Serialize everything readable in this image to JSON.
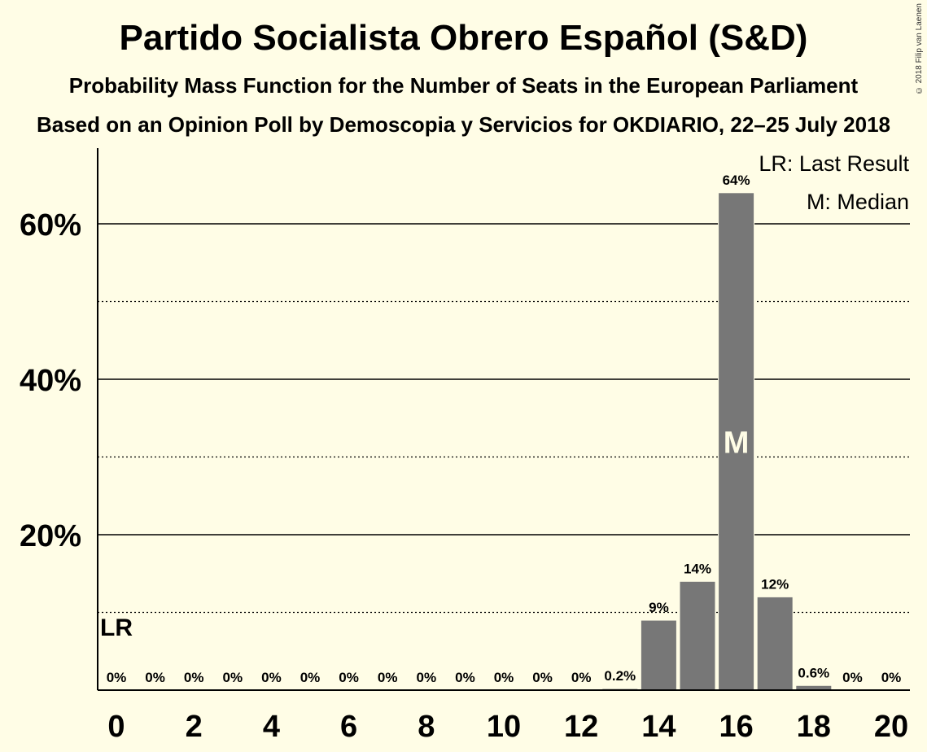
{
  "chart_data": {
    "type": "bar",
    "title": "Partido Socialista Obrero Español (S&D)",
    "subtitle": "Probability Mass Function for the Number of Seats in the European Parliament",
    "subtitle2": "Based on an Opinion Poll by Demoscopia y Servicios for OKDIARIO, 22–25 July 2018",
    "xlabel": "",
    "ylabel": "",
    "x": [
      0,
      1,
      2,
      3,
      4,
      5,
      6,
      7,
      8,
      9,
      10,
      11,
      12,
      13,
      14,
      15,
      16,
      17,
      18,
      19,
      20
    ],
    "values": [
      0,
      0,
      0,
      0,
      0,
      0,
      0,
      0,
      0,
      0,
      0,
      0,
      0,
      0.2,
      9,
      14,
      64,
      12,
      0.6,
      0,
      0
    ],
    "data_labels": [
      "0%",
      "0%",
      "0%",
      "0%",
      "0%",
      "0%",
      "0%",
      "0%",
      "0%",
      "0%",
      "0%",
      "0%",
      "0%",
      "0.2%",
      "9%",
      "14%",
      "64%",
      "12%",
      "0.6%",
      "0%",
      "0%"
    ],
    "x_tick_labels": [
      "0",
      "2",
      "4",
      "6",
      "8",
      "10",
      "12",
      "14",
      "16",
      "18",
      "20"
    ],
    "x_ticks": [
      0,
      2,
      4,
      6,
      8,
      10,
      12,
      14,
      16,
      18,
      20
    ],
    "y_ticks": [
      20,
      40,
      60
    ],
    "y_tick_labels": [
      "20%",
      "40%",
      "60%"
    ],
    "y_minor_gridlines": [
      10,
      30,
      50
    ],
    "ylim": [
      0,
      70
    ],
    "bar_color": "#777777",
    "background": "#fffde6",
    "last_result": {
      "seats": 0,
      "label": "LR"
    },
    "median": {
      "seats": 16,
      "label": "M"
    },
    "legend": [
      "LR: Last Result",
      "M: Median"
    ],
    "legend_position": "top-right",
    "copyright": "© 2018 Filip van Laenen"
  }
}
